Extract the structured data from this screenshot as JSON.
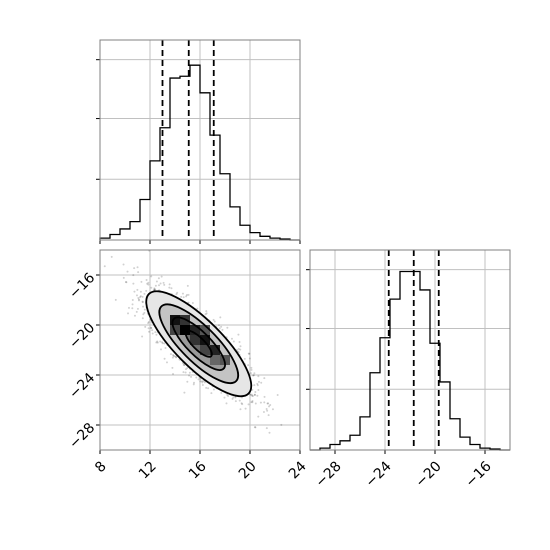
{
  "chart_data": {
    "type": "corner",
    "grid": true,
    "panels": [
      {
        "id": "hist_x",
        "type": "histogram",
        "range": [
          8,
          24
        ],
        "ymax": 1.0,
        "bin_edges": [
          8,
          8.8,
          9.6,
          10.4,
          11.2,
          12,
          12.8,
          13.6,
          14.4,
          15.2,
          16,
          16.8,
          17.6,
          18.4,
          19.2,
          20,
          20.8,
          21.6,
          22.4,
          23.2,
          24
        ],
        "counts": [
          0.01,
          0.03,
          0.06,
          0.1,
          0.22,
          0.43,
          0.61,
          0.88,
          0.89,
          0.95,
          0.8,
          0.57,
          0.36,
          0.18,
          0.08,
          0.04,
          0.02,
          0.01,
          0.005,
          0.0
        ],
        "quantiles": [
          13.0,
          15.1,
          17.1
        ],
        "xticks": [
          8,
          12,
          16,
          20,
          24
        ],
        "xticklabels_shown": false
      },
      {
        "id": "scatter_xy",
        "type": "2d-density",
        "xlim": [
          8,
          24
        ],
        "ylim": [
          -30,
          -14
        ],
        "xticks": [
          8,
          12,
          16,
          20,
          24
        ],
        "xticklabels": [
          "8",
          "12",
          "16",
          "20",
          "24"
        ],
        "yticks": [
          -16,
          -20,
          -24,
          -28
        ],
        "yticklabels": [
          "−16",
          "−20",
          "−24",
          "−28"
        ],
        "center": [
          15.9,
          -21.5
        ],
        "correlation": -0.8,
        "contour_levels_sigma": [
          0.5,
          1.0,
          1.5,
          2.0
        ]
      },
      {
        "id": "hist_y",
        "type": "histogram",
        "range": [
          -30,
          -14
        ],
        "ymax": 1.0,
        "bin_edges": [
          -30,
          -29.2,
          -28.4,
          -27.6,
          -26.8,
          -26,
          -25.2,
          -24.4,
          -23.6,
          -22.8,
          -22,
          -21.2,
          -20.4,
          -19.6,
          -18.8,
          -18,
          -17.2,
          -16.4,
          -15.6,
          -14.8,
          -14
        ],
        "counts": [
          0.0,
          0.01,
          0.03,
          0.05,
          0.08,
          0.18,
          0.42,
          0.61,
          0.82,
          0.97,
          0.97,
          0.87,
          0.58,
          0.37,
          0.17,
          0.07,
          0.03,
          0.01,
          0.005,
          0.0
        ],
        "quantiles": [
          -23.7,
          -21.7,
          -19.7
        ],
        "xticks": [
          -28,
          -24,
          -20,
          -16
        ],
        "xticklabels": [
          "−28",
          "−24",
          "−20",
          "−16"
        ]
      }
    ]
  }
}
